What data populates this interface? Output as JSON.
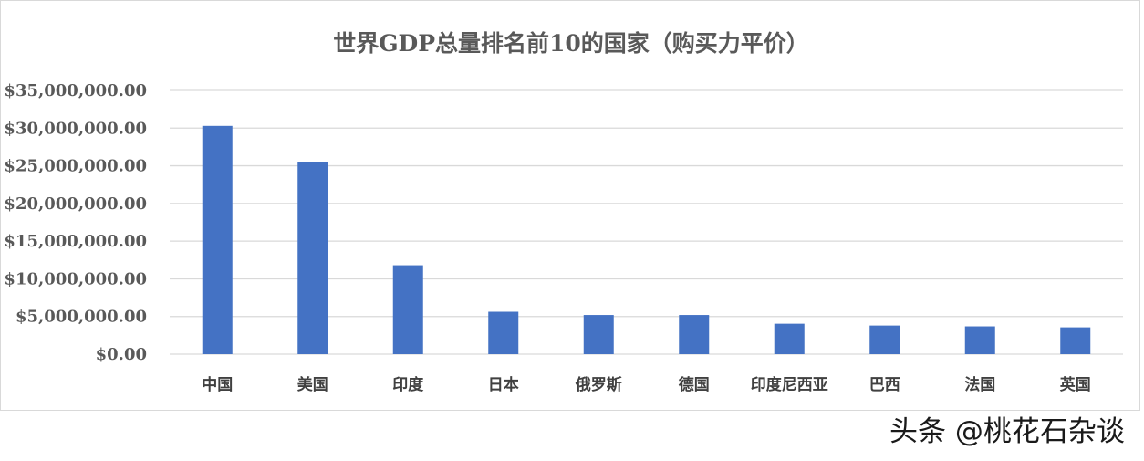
{
  "chart_data": {
    "type": "bar",
    "title": "世界GDP总量排名前10的国家（购买力平价）",
    "categories": [
      "中国",
      "美国",
      "印度",
      "日本",
      "俄罗斯",
      "德国",
      "印度尼西亚",
      "巴西",
      "法国",
      "英国"
    ],
    "values": [
      30300000,
      25460000,
      11800000,
      5630000,
      5200000,
      5200000,
      4040000,
      3800000,
      3690000,
      3560000
    ],
    "yticks": [
      "$0.00",
      "$5,000,000.00",
      "$10,000,000.00",
      "$15,000,000.00",
      "$20,000,000.00",
      "$25,000,000.00",
      "$30,000,000.00",
      "$35,000,000.00"
    ],
    "ylim": [
      0,
      35000000
    ],
    "xlabel": "",
    "ylabel": "",
    "grid": true,
    "legend": "none",
    "bar_color": "#4472c4"
  },
  "watermark": "头条 @桃花石杂谈"
}
